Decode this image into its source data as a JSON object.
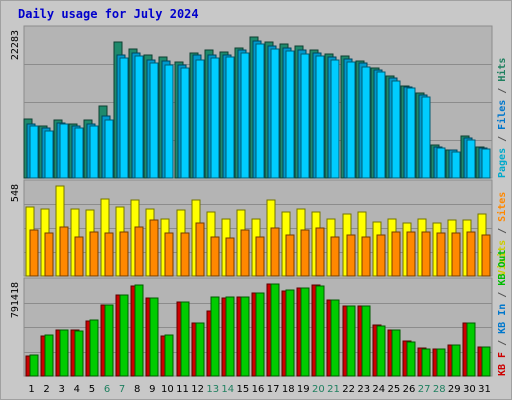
{
  "title": "Daily usage for July 2024",
  "chart_data": [
    {
      "type": "bar",
      "panel": "pages-files-hits",
      "categories": [
        "1",
        "2",
        "3",
        "4",
        "5",
        "6",
        "7",
        "8",
        "9",
        "10",
        "11",
        "12",
        "13",
        "14",
        "15",
        "16",
        "17",
        "18",
        "19",
        "20",
        "21",
        "22",
        "23",
        "24",
        "25",
        "26",
        "27",
        "28",
        "29",
        "30",
        "31"
      ],
      "weekend_days": [
        "6",
        "7",
        "13",
        "14",
        "20",
        "21",
        "27",
        "28"
      ],
      "ymax_label": "22283",
      "ymax": 22283,
      "legend": [
        {
          "text": "Pages",
          "color": "#00aacc"
        },
        {
          "text": " / ",
          "color": "#555555"
        },
        {
          "text": "Files",
          "color": "#0077cc"
        },
        {
          "text": " / ",
          "color": "#555555"
        },
        {
          "text": "Hits",
          "color": "#208060"
        }
      ],
      "series": [
        {
          "name": "Hits",
          "color": "#1e8a6c",
          "values": [
            9000,
            7900,
            8800,
            8300,
            8800,
            11000,
            20800,
            19700,
            18700,
            18400,
            17700,
            19100,
            19500,
            19300,
            19900,
            21500,
            20700,
            20400,
            20100,
            19600,
            18900,
            18600,
            17800,
            16800,
            15500,
            14000,
            12900,
            5000,
            4300,
            6400,
            4800
          ]
        },
        {
          "name": "Files",
          "color": "#0099cc",
          "values": [
            8300,
            7600,
            8400,
            7900,
            8300,
            9500,
            18800,
            19100,
            18000,
            17900,
            17200,
            18700,
            18800,
            18800,
            19500,
            20900,
            20200,
            19900,
            19600,
            19100,
            18500,
            18100,
            17500,
            16500,
            15200,
            13900,
            12700,
            4800,
            4200,
            6100,
            4600
          ]
        },
        {
          "name": "Pages",
          "color": "#00ccff",
          "values": [
            7900,
            7200,
            8200,
            7600,
            7900,
            8900,
            18300,
            18600,
            17600,
            17300,
            16800,
            18000,
            18300,
            18400,
            19100,
            20400,
            19700,
            19400,
            19000,
            18600,
            18000,
            17700,
            17000,
            16200,
            14800,
            13700,
            12400,
            4600,
            4000,
            5800,
            4400
          ]
        }
      ]
    },
    {
      "type": "bar",
      "panel": "visits-sites",
      "ymax_label": "548",
      "ymax": 548,
      "legend": [
        {
          "text": "Visits",
          "color": "#cccc00"
        },
        {
          "text": " / ",
          "color": "#555555"
        },
        {
          "text": "Sites",
          "color": "#ff8800"
        }
      ],
      "series": [
        {
          "name": "Visits",
          "color": "#ffff00",
          "values": [
            420,
            410,
            548,
            410,
            400,
            470,
            420,
            460,
            410,
            350,
            400,
            460,
            390,
            350,
            400,
            350,
            460,
            390,
            410,
            390,
            350,
            380,
            390,
            330,
            350,
            320,
            350,
            320,
            340,
            340,
            380
          ]
        },
        {
          "name": "Sites",
          "color": "#ff8800",
          "values": [
            280,
            260,
            300,
            240,
            270,
            260,
            270,
            300,
            340,
            260,
            260,
            320,
            240,
            230,
            280,
            240,
            290,
            250,
            280,
            290,
            240,
            250,
            240,
            250,
            270,
            270,
            270,
            260,
            260,
            270,
            250
          ]
        }
      ]
    },
    {
      "type": "bar",
      "panel": "kbf-kbin-kbout",
      "ymax_label": "791418",
      "ymax": 791418,
      "legend": [
        {
          "text": "KB F",
          "color": "#cc0000"
        },
        {
          "text": " / ",
          "color": "#555555"
        },
        {
          "text": "KB In",
          "color": "#0077cc"
        },
        {
          "text": " / ",
          "color": "#555555"
        },
        {
          "text": "KB Out",
          "color": "#00bb00"
        }
      ],
      "series": [
        {
          "name": "KB F",
          "color": "#cc0000",
          "values": [
            170000,
            340000,
            400000,
            400000,
            470000,
            610000,
            700000,
            770000,
            670000,
            340000,
            640000,
            460000,
            560000,
            670000,
            680000,
            710000,
            790000,
            730000,
            760000,
            780000,
            650000,
            600000,
            600000,
            440000,
            400000,
            300000,
            240000,
            230000,
            270000,
            460000,
            250000
          ]
        },
        {
          "name": "KB Out",
          "color": "#00cc00",
          "values": [
            180000,
            350000,
            400000,
            390000,
            480000,
            610000,
            700000,
            780000,
            670000,
            350000,
            640000,
            460000,
            680000,
            680000,
            680000,
            710000,
            790000,
            740000,
            760000,
            770000,
            650000,
            600000,
            600000,
            430000,
            400000,
            290000,
            230000,
            230000,
            270000,
            460000,
            250000
          ]
        }
      ]
    }
  ]
}
